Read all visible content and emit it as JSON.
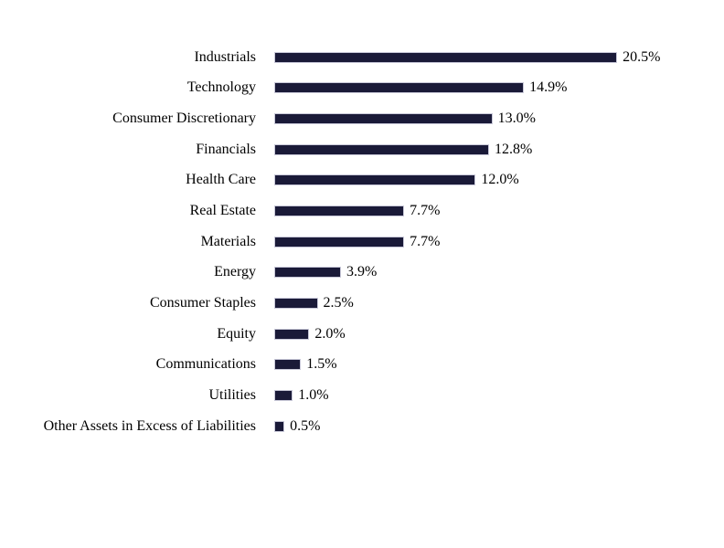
{
  "chart_data": {
    "type": "bar",
    "orientation": "horizontal",
    "title": "",
    "xlabel": "",
    "ylabel": "",
    "grid": false,
    "legend": null,
    "xlim": [
      0,
      20.5
    ],
    "bar_color": "#1a1a38",
    "bar_border_color": "#c8c8d8",
    "categories": [
      "Industrials",
      "Technology",
      "Consumer Discretionary",
      "Financials",
      "Health Care",
      "Real Estate",
      "Materials",
      "Energy",
      "Consumer Staples",
      "Equity",
      "Communications",
      "Utilities",
      "Other Assets in Excess of Liabilities"
    ],
    "values": [
      20.5,
      14.9,
      13.0,
      12.8,
      12.0,
      7.7,
      7.7,
      3.9,
      2.5,
      2.0,
      1.5,
      1.0,
      0.5
    ],
    "value_labels": [
      "20.5%",
      "14.9%",
      "13.0%",
      "12.8%",
      "12.0%",
      "7.7%",
      "7.7%",
      "3.9%",
      "2.5%",
      "2.0%",
      "1.5%",
      "1.0%",
      "0.5%"
    ]
  }
}
